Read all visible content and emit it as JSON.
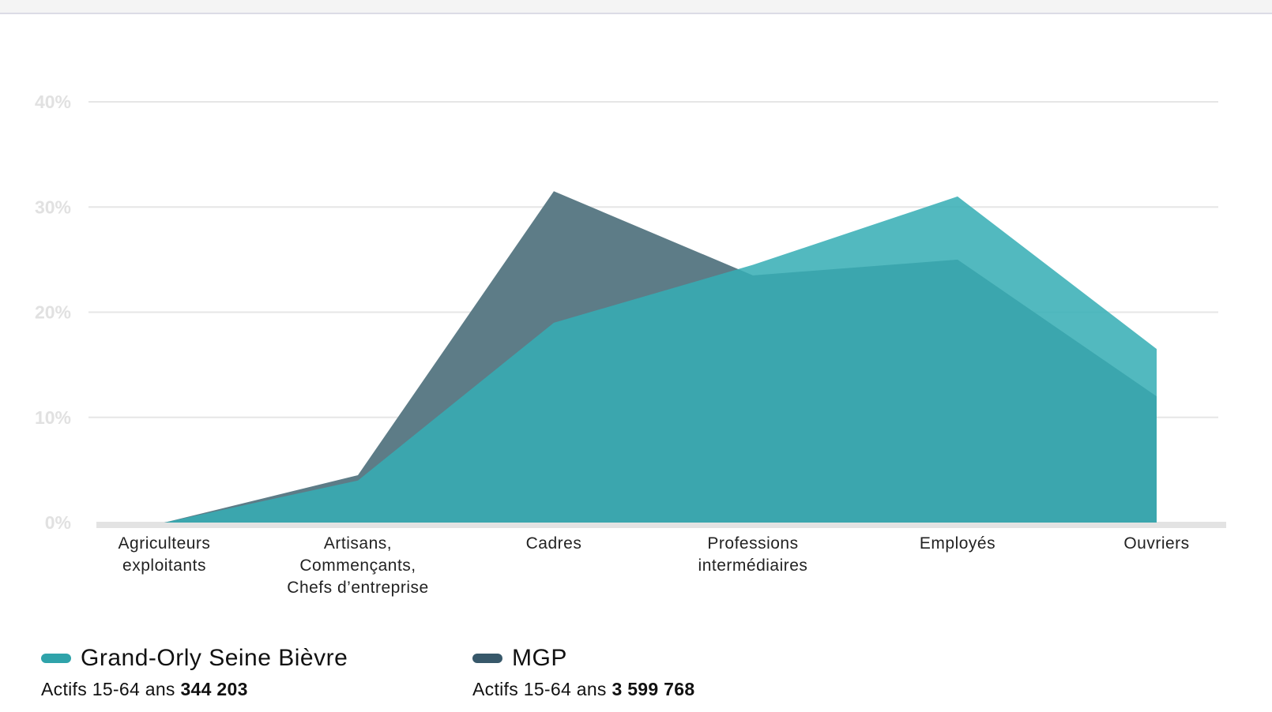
{
  "colors": {
    "gosb": "#2fa3aa",
    "gosb_fill": "#35aeb4",
    "mgp": "#37586a",
    "mgp_fill": "#5d7c87",
    "grid": "#e6e6e6",
    "baseline": "#e3e3e3"
  },
  "chart_data": {
    "type": "area",
    "categories": [
      [
        "Agriculteurs",
        "exploitants"
      ],
      [
        "Artisans,",
        "Commençants,",
        "Chefs d’entreprise"
      ],
      [
        "Cadres"
      ],
      [
        "Professions",
        "intermédiaires"
      ],
      [
        "Employés"
      ],
      [
        "Ouvriers"
      ]
    ],
    "series": [
      {
        "name": "Grand-Orly Seine Bièvre",
        "values": [
          0.0,
          4.0,
          19.0,
          24.5,
          31.0,
          16.5
        ]
      },
      {
        "name": "MGP",
        "values": [
          0.0,
          4.5,
          31.5,
          23.5,
          25.0,
          12.0
        ]
      }
    ],
    "ylim": [
      0,
      40
    ],
    "yticks": [
      "0%",
      "10%",
      "20%",
      "30%",
      "40%"
    ],
    "grid": true,
    "legend_position": "bottom-left"
  },
  "legend": [
    {
      "name": "Grand-Orly Seine Bièvre",
      "sub_prefix": "Actifs 15-64 ans",
      "sub_value": "344 203"
    },
    {
      "name": "MGP",
      "sub_prefix": "Actifs 15-64 ans",
      "sub_value": "3 599 768"
    }
  ]
}
